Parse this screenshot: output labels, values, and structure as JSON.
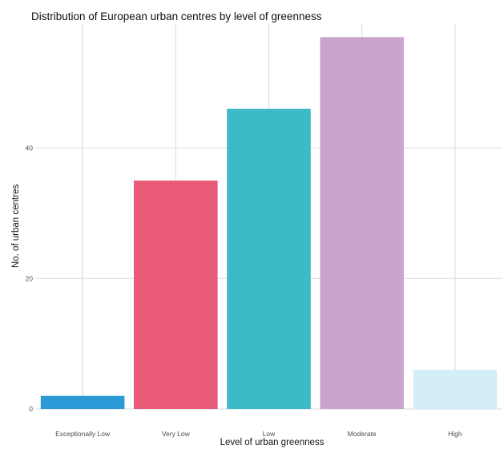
{
  "chart_data": {
    "type": "bar",
    "title": "Distribution of European urban centres by level of greenness",
    "xlabel": "Level of urban greenness",
    "ylabel": "No. of urban centres",
    "categories": [
      "Exceptionally Low",
      "Very Low",
      "Low",
      "Moderate",
      "High"
    ],
    "values": [
      2,
      35,
      46,
      57,
      6
    ],
    "colors": [
      "#2b9ad6",
      "#e85a77",
      "#3dbac8",
      "#c9a5ce",
      "#d4edf9"
    ],
    "y_ticks": [
      0,
      20,
      40
    ],
    "ylim": [
      0,
      59
    ],
    "grid": true,
    "legend": "none"
  }
}
